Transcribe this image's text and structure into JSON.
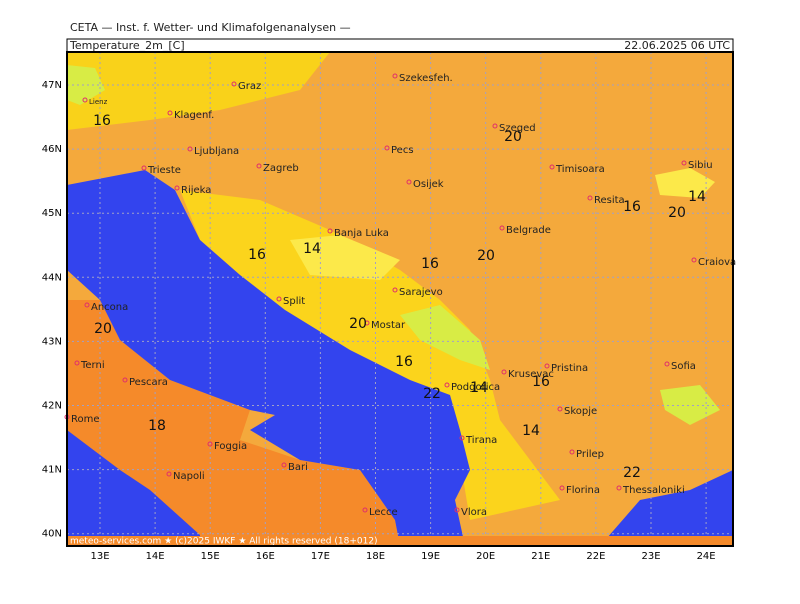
{
  "header": {
    "title": "CETA — Inst. f. Wetter- und Klimafolgenanalysen —",
    "field": "Temperature_2m_[C]",
    "valid": "22.06.2025 06 UTC"
  },
  "lat_ticks": [
    "47N",
    "46N",
    "45N",
    "44N",
    "43N",
    "42N",
    "41N",
    "40N"
  ],
  "lon_ticks": [
    "13E",
    "14E",
    "15E",
    "16E",
    "17E",
    "18E",
    "19E",
    "20E",
    "21E",
    "22E",
    "23E",
    "24E"
  ],
  "cities": [
    "Lienz",
    "Graz",
    "Szekesfeh.",
    "Klagenf.",
    "Ljubljana",
    "Zagreb",
    "Pecs",
    "Szeged",
    "Trieste",
    "Rijeka",
    "Osijek",
    "Timisoara",
    "Sibiu",
    "Resita",
    "Banja Luka",
    "Belgrade",
    "Craiova",
    "Sarajevo",
    "Split",
    "Ancona",
    "Mostar",
    "Pristina",
    "Sofia",
    "Terni",
    "Pescara",
    "Krusevac",
    "Podgorica",
    "Skopje",
    "Rome",
    "Foggia",
    "Tirana",
    "Prilep",
    "Bari",
    "Napoli",
    "Florina",
    "Thessaloniki",
    "Lecce",
    "Vlora"
  ],
  "contour_labels": [
    16,
    20,
    16,
    14,
    20,
    14,
    16,
    20,
    20,
    20,
    16,
    16,
    22,
    14,
    16,
    18,
    14,
    22
  ],
  "footer": "meteo-services.com ★ (c)2025 IWKF ★ All rights reserved (18+012)"
}
